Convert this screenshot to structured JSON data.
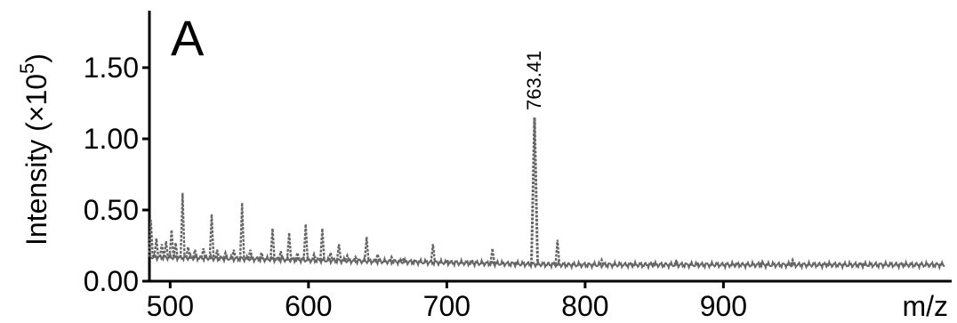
{
  "chart_data": {
    "type": "line",
    "panel_label": "A",
    "ylabel": "Intensity (×10",
    "ylabel_exp": "5",
    "ylabel_close": ")",
    "xlabel": "m/z",
    "xlim": [
      485,
      1065
    ],
    "ylim": [
      0,
      1.9
    ],
    "xticks": [
      500,
      600,
      700,
      800,
      900
    ],
    "xtick_labels": [
      "500",
      "600",
      "700",
      "800",
      "900"
    ],
    "yticks": [
      0.0,
      0.5,
      1.0,
      1.5
    ],
    "ytick_labels": [
      "0.00",
      "0.50",
      "1.00",
      "1.50"
    ],
    "annotations": [
      {
        "x": 763.41,
        "y": 1.15,
        "text": "763.41"
      }
    ],
    "series": [
      {
        "color": "#666666",
        "peaks": [
          {
            "x": 486,
            "y": 0.43
          },
          {
            "x": 490,
            "y": 0.3
          },
          {
            "x": 494,
            "y": 0.26
          },
          {
            "x": 497,
            "y": 0.28
          },
          {
            "x": 501,
            "y": 0.36
          },
          {
            "x": 504,
            "y": 0.27
          },
          {
            "x": 509,
            "y": 0.62
          },
          {
            "x": 513,
            "y": 0.24
          },
          {
            "x": 518,
            "y": 0.22
          },
          {
            "x": 524,
            "y": 0.23
          },
          {
            "x": 530,
            "y": 0.47
          },
          {
            "x": 534,
            "y": 0.22
          },
          {
            "x": 540,
            "y": 0.2
          },
          {
            "x": 546,
            "y": 0.22
          },
          {
            "x": 552,
            "y": 0.55
          },
          {
            "x": 558,
            "y": 0.22
          },
          {
            "x": 566,
            "y": 0.2
          },
          {
            "x": 574,
            "y": 0.37
          },
          {
            "x": 580,
            "y": 0.21
          },
          {
            "x": 586,
            "y": 0.34
          },
          {
            "x": 592,
            "y": 0.2
          },
          {
            "x": 598,
            "y": 0.4
          },
          {
            "x": 604,
            "y": 0.19
          },
          {
            "x": 610,
            "y": 0.37
          },
          {
            "x": 616,
            "y": 0.2
          },
          {
            "x": 622,
            "y": 0.26
          },
          {
            "x": 628,
            "y": 0.18
          },
          {
            "x": 634,
            "y": 0.17
          },
          {
            "x": 642,
            "y": 0.31
          },
          {
            "x": 650,
            "y": 0.19
          },
          {
            "x": 660,
            "y": 0.17
          },
          {
            "x": 668,
            "y": 0.16
          },
          {
            "x": 677,
            "y": 0.15
          },
          {
            "x": 690,
            "y": 0.26
          },
          {
            "x": 700,
            "y": 0.15
          },
          {
            "x": 718,
            "y": 0.15
          },
          {
            "x": 733,
            "y": 0.23
          },
          {
            "x": 750,
            "y": 0.13
          },
          {
            "x": 763.41,
            "y": 1.15
          },
          {
            "x": 780,
            "y": 0.29
          },
          {
            "x": 812,
            "y": 0.15
          },
          {
            "x": 833,
            "y": 0.13
          },
          {
            "x": 850,
            "y": 0.13
          },
          {
            "x": 866,
            "y": 0.14
          },
          {
            "x": 882,
            "y": 0.12
          },
          {
            "x": 910,
            "y": 0.13
          },
          {
            "x": 928,
            "y": 0.14
          },
          {
            "x": 950,
            "y": 0.15
          },
          {
            "x": 975,
            "y": 0.12
          },
          {
            "x": 1000,
            "y": 0.13
          },
          {
            "x": 1030,
            "y": 0.12
          }
        ]
      }
    ]
  }
}
